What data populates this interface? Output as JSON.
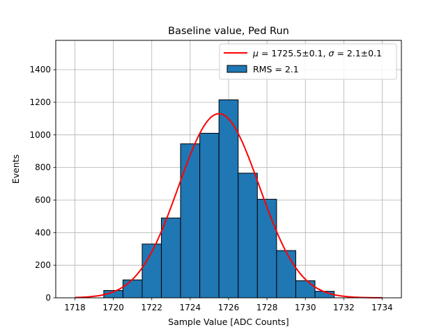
{
  "chart_data": {
    "type": "bar",
    "title": "Baseline value, Ped Run",
    "xlabel": "Sample Value [ADC Counts]",
    "ylabel": "Events",
    "xlim": [
      1717,
      1735
    ],
    "ylim": [
      0,
      1580
    ],
    "xticks": [
      1718,
      1720,
      1722,
      1724,
      1726,
      1728,
      1730,
      1732,
      1734
    ],
    "yticks": [
      0,
      200,
      400,
      600,
      800,
      1000,
      1200,
      1400
    ],
    "grid": true,
    "legend_position": "top-right",
    "bin_width": 1,
    "bins": [
      1719.5,
      1720.5,
      1721.5,
      1722.5,
      1723.5,
      1724.5,
      1725.5,
      1726.5,
      1727.5,
      1728.5,
      1729.5,
      1730.5
    ],
    "values": [
      45,
      110,
      330,
      490,
      945,
      1010,
      1215,
      765,
      605,
      290,
      105,
      40
    ],
    "series": [
      {
        "name": "RMS = 2.1",
        "kind": "histogram",
        "color": "#1f77b4",
        "edgecolor": "#000000"
      },
      {
        "name": "$\\mu=1725.5\\pm0.1$, $\\sigma=2.1\\pm0.1$",
        "kind": "gaussian_fit",
        "color": "#ff0000",
        "mu": 1725.5,
        "sigma": 2.1,
        "amplitude": 1130,
        "x_range": [
          1718,
          1734
        ]
      }
    ],
    "legend": {
      "fit_label": {
        "mu_sym": "μ",
        "mu_text": " = 1725.5±0.1, ",
        "sigma_sym": "σ",
        "sigma_text": " = 2.1±0.1"
      },
      "hist_label": "RMS = 2.1"
    }
  }
}
